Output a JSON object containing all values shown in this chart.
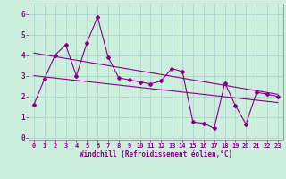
{
  "x_data": [
    0,
    1,
    2,
    3,
    4,
    5,
    6,
    7,
    8,
    9,
    10,
    11,
    12,
    13,
    14,
    15,
    16,
    17,
    18,
    19,
    20,
    21,
    22,
    23
  ],
  "y_data": [
    1.6,
    2.85,
    4.0,
    4.5,
    3.0,
    4.6,
    5.85,
    3.9,
    2.9,
    2.8,
    2.7,
    2.6,
    2.75,
    3.35,
    3.2,
    0.75,
    0.7,
    0.45,
    2.65,
    1.55,
    0.65,
    2.2,
    2.1,
    2.0
  ],
  "trend1_x": [
    0,
    23
  ],
  "trend1_y": [
    4.1,
    2.1
  ],
  "trend2_x": [
    0,
    23
  ],
  "trend2_y": [
    3.0,
    1.7
  ],
  "line_color": "#880088",
  "bg_color": "#cceedd",
  "grid_color": "#aacccc",
  "xlabel": "Windchill (Refroidissement éolien,°C)",
  "xlim": [
    -0.5,
    23.5
  ],
  "ylim": [
    -0.1,
    6.5
  ],
  "yticks": [
    0,
    1,
    2,
    3,
    4,
    5,
    6
  ],
  "xticks": [
    0,
    1,
    2,
    3,
    4,
    5,
    6,
    7,
    8,
    9,
    10,
    11,
    12,
    13,
    14,
    15,
    16,
    17,
    18,
    19,
    20,
    21,
    22,
    23
  ]
}
